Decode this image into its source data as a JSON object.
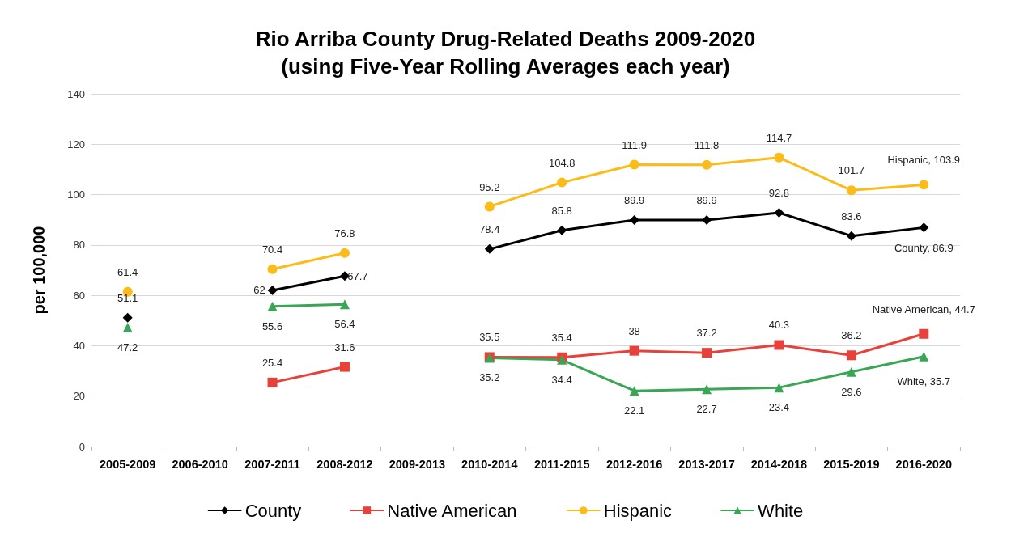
{
  "chart_data": {
    "type": "line",
    "title": "Rio Arriba County Drug-Related Deaths 2009-2020\n(using Five-Year Rolling Averages each year)",
    "ylabel": "per 100,000",
    "categories": [
      "2005-2009",
      "2006-2010",
      "2007-2011",
      "2008-2012",
      "2009-2013",
      "2010-2014",
      "2011-2015",
      "2012-2016",
      "2013-2017",
      "2014-2018",
      "2015-2019",
      "2016-2020"
    ],
    "series": [
      {
        "name": "County",
        "color": "#000000",
        "marker": "diamond",
        "values": [
          51.1,
          null,
          62,
          67.7,
          null,
          78.4,
          85.8,
          89.9,
          89.9,
          92.8,
          83.6,
          86.9
        ],
        "value_labels": [
          "51.1",
          null,
          "62",
          "67.7",
          null,
          "78.4",
          "85.8",
          "89.9",
          "89.9",
          "92.8",
          "83.6",
          "County, 86.9"
        ]
      },
      {
        "name": "Native American",
        "color": "#e8413a",
        "marker": "square",
        "values": [
          null,
          null,
          25.4,
          31.6,
          null,
          35.5,
          35.4,
          38,
          37.2,
          40.3,
          36.2,
          44.7
        ],
        "value_labels": [
          null,
          null,
          "25.4",
          "31.6",
          null,
          "35.5",
          "35.4",
          "38",
          "37.2",
          "40.3",
          "36.2",
          "Native American, 44.7"
        ]
      },
      {
        "name": "Hispanic",
        "color": "#fbbc1a",
        "marker": "circle",
        "values": [
          61.4,
          null,
          70.4,
          76.8,
          null,
          95.2,
          104.8,
          111.9,
          111.8,
          114.7,
          101.7,
          103.9
        ],
        "value_labels": [
          "61.4",
          null,
          "70.4",
          "76.8",
          null,
          "95.2",
          "104.8",
          "111.9",
          "111.8",
          "114.7",
          "101.7",
          "Hispanic, 103.9"
        ]
      },
      {
        "name": "White",
        "color": "#3aa655",
        "marker": "triangle",
        "values": [
          47.2,
          null,
          55.6,
          56.4,
          null,
          35.2,
          34.4,
          22.1,
          22.7,
          23.4,
          29.6,
          35.7
        ],
        "value_labels": [
          "47.2",
          null,
          "55.6",
          "56.4",
          null,
          "35.2",
          "34.4",
          "22.1",
          "22.7",
          "23.4",
          "29.6",
          "White, 35.7"
        ]
      }
    ],
    "ylim": [
      0,
      140
    ],
    "yticks": [
      0,
      20,
      40,
      60,
      80,
      100,
      120,
      140
    ],
    "grid": "y",
    "legend": "bottom",
    "line_style": "solid"
  }
}
